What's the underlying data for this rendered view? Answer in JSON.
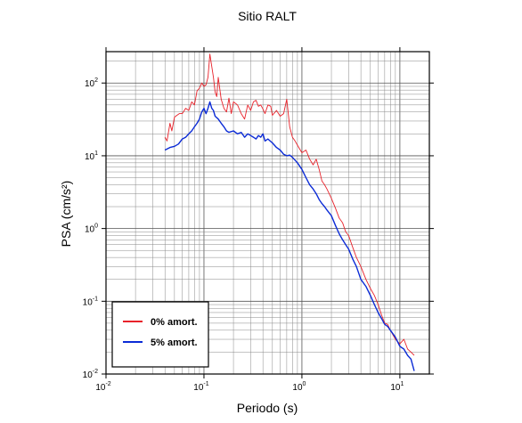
{
  "chart_data": {
    "type": "line",
    "title": "Sitio RALT",
    "xlabel": "Periodo (s)",
    "ylabel": "PSA (cm/s²)",
    "xscale": "log",
    "yscale": "log",
    "xlim": [
      0.01,
      20
    ],
    "ylim": [
      0.01,
      270
    ],
    "grid": true,
    "legend_position": "bottom-left",
    "x_ticks": [
      {
        "base": "10",
        "exp": "-2"
      },
      {
        "base": "10",
        "exp": "-1"
      },
      {
        "base": "10",
        "exp": "0"
      },
      {
        "base": "10",
        "exp": "1"
      }
    ],
    "y_ticks": [
      {
        "base": "10",
        "exp": "-2"
      },
      {
        "base": "10",
        "exp": "-1"
      },
      {
        "base": "10",
        "exp": "0"
      },
      {
        "base": "10",
        "exp": "1"
      },
      {
        "base": "10",
        "exp": "2"
      }
    ],
    "series": [
      {
        "name": "0% amort.",
        "color": "#e8222a",
        "x": [
          0.04,
          0.042,
          0.045,
          0.047,
          0.05,
          0.053,
          0.056,
          0.06,
          0.065,
          0.07,
          0.075,
          0.08,
          0.085,
          0.09,
          0.095,
          0.1,
          0.105,
          0.11,
          0.115,
          0.12,
          0.125,
          0.13,
          0.135,
          0.14,
          0.15,
          0.16,
          0.17,
          0.18,
          0.19,
          0.2,
          0.22,
          0.24,
          0.26,
          0.28,
          0.3,
          0.32,
          0.34,
          0.36,
          0.38,
          0.4,
          0.42,
          0.45,
          0.48,
          0.5,
          0.55,
          0.6,
          0.65,
          0.7,
          0.75,
          0.8,
          0.85,
          0.9,
          1.0,
          1.1,
          1.2,
          1.3,
          1.4,
          1.5,
          1.6,
          1.7,
          1.8,
          1.9,
          2.0,
          2.2,
          2.4,
          2.6,
          2.8,
          3.0,
          3.3,
          3.6,
          4.0,
          4.5,
          5.0,
          5.5,
          6.0,
          6.5,
          7.0,
          7.5,
          8.0,
          9.0,
          10.0,
          11.0,
          12.0,
          13.0,
          14.0
        ],
        "y": [
          18,
          16,
          28,
          22,
          34,
          36,
          38,
          38,
          45,
          42,
          55,
          50,
          78,
          85,
          100,
          90,
          95,
          120,
          250,
          170,
          120,
          75,
          65,
          120,
          60,
          45,
          40,
          62,
          38,
          55,
          50,
          38,
          32,
          50,
          42,
          55,
          58,
          48,
          50,
          44,
          38,
          50,
          48,
          36,
          42,
          35,
          38,
          60,
          25,
          18,
          16,
          14,
          11,
          12,
          9,
          7.5,
          9,
          6.5,
          4.5,
          4.0,
          3.5,
          3.0,
          2.6,
          1.9,
          1.4,
          1.2,
          0.9,
          0.8,
          0.55,
          0.4,
          0.3,
          0.2,
          0.15,
          0.12,
          0.09,
          0.065,
          0.05,
          0.048,
          0.04,
          0.03,
          0.026,
          0.03,
          0.022,
          0.02,
          0.018
        ]
      },
      {
        "name": "5% amort.",
        "color": "#0b2bd6",
        "x": [
          0.04,
          0.045,
          0.05,
          0.055,
          0.06,
          0.065,
          0.07,
          0.075,
          0.08,
          0.085,
          0.09,
          0.095,
          0.1,
          0.105,
          0.11,
          0.115,
          0.12,
          0.125,
          0.13,
          0.14,
          0.15,
          0.16,
          0.17,
          0.18,
          0.2,
          0.22,
          0.24,
          0.26,
          0.28,
          0.3,
          0.32,
          0.34,
          0.36,
          0.38,
          0.4,
          0.42,
          0.45,
          0.5,
          0.55,
          0.6,
          0.65,
          0.7,
          0.75,
          0.8,
          0.9,
          1.0,
          1.1,
          1.2,
          1.3,
          1.4,
          1.5,
          1.6,
          1.7,
          1.8,
          2.0,
          2.2,
          2.4,
          2.6,
          2.8,
          3.0,
          3.3,
          3.6,
          4.0,
          4.5,
          5.0,
          5.5,
          6.0,
          6.5,
          7.0,
          7.5,
          8.0,
          9.0,
          10.0,
          11.0,
          12.0,
          13.0,
          14.0
        ],
        "y": [
          12,
          13,
          13.5,
          14.5,
          17,
          18,
          20,
          22,
          25,
          28,
          32,
          40,
          45,
          38,
          45,
          55,
          45,
          42,
          35,
          32,
          28,
          25,
          22,
          21,
          22,
          20,
          21,
          18,
          20,
          19,
          18,
          17,
          19,
          18,
          20,
          16,
          17,
          15,
          13,
          12,
          10.5,
          10,
          10.2,
          9.5,
          8.0,
          6.5,
          5.0,
          4.0,
          3.5,
          3.0,
          2.5,
          2.2,
          2.0,
          1.8,
          1.5,
          1.1,
          0.85,
          0.7,
          0.6,
          0.52,
          0.38,
          0.3,
          0.2,
          0.16,
          0.12,
          0.09,
          0.07,
          0.058,
          0.048,
          0.045,
          0.04,
          0.032,
          0.024,
          0.022,
          0.018,
          0.016,
          0.011
        ]
      }
    ]
  }
}
